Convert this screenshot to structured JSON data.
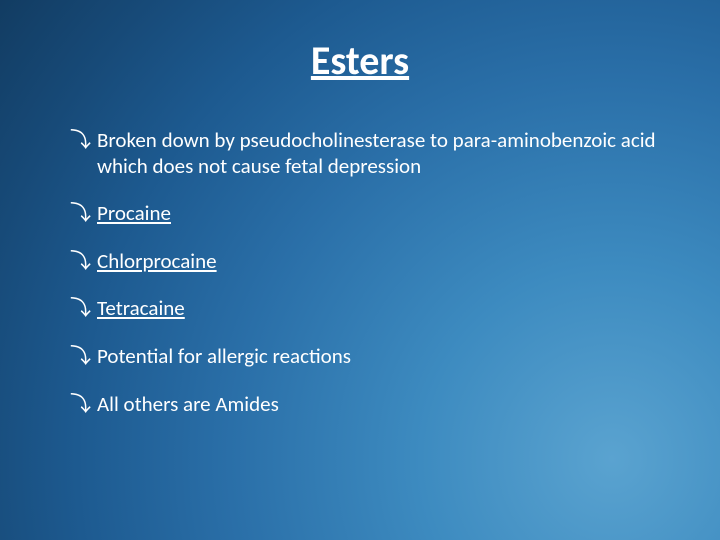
{
  "slide": {
    "background": {
      "type": "radial-gradient",
      "center": "85% 85%",
      "stops": [
        "#5aa3d0",
        "#3d8bc0",
        "#2a6fa8",
        "#1d5a90",
        "#174a78",
        "#123c62"
      ]
    },
    "title": {
      "text": "Esters",
      "fontsize": 40,
      "fontweight": 700,
      "underline": true,
      "color": "#ffffff"
    },
    "bullet_marker": "⤵",
    "bullets": [
      {
        "text": "Broken down by pseudocholinesterase to para-aminobenzoic acid which does not cause fetal depression",
        "underline": false
      },
      {
        "text": "Procaine",
        "underline": true
      },
      {
        "text": "Chlorprocaine",
        "underline": true
      },
      {
        "text": "Tetracaine",
        "underline": true
      },
      {
        "text": "Potential for allergic reactions",
        "underline": false
      },
      {
        "text": "All others are Amides",
        "underline": false
      }
    ],
    "body_fontsize": 21,
    "text_color": "#ffffff"
  }
}
